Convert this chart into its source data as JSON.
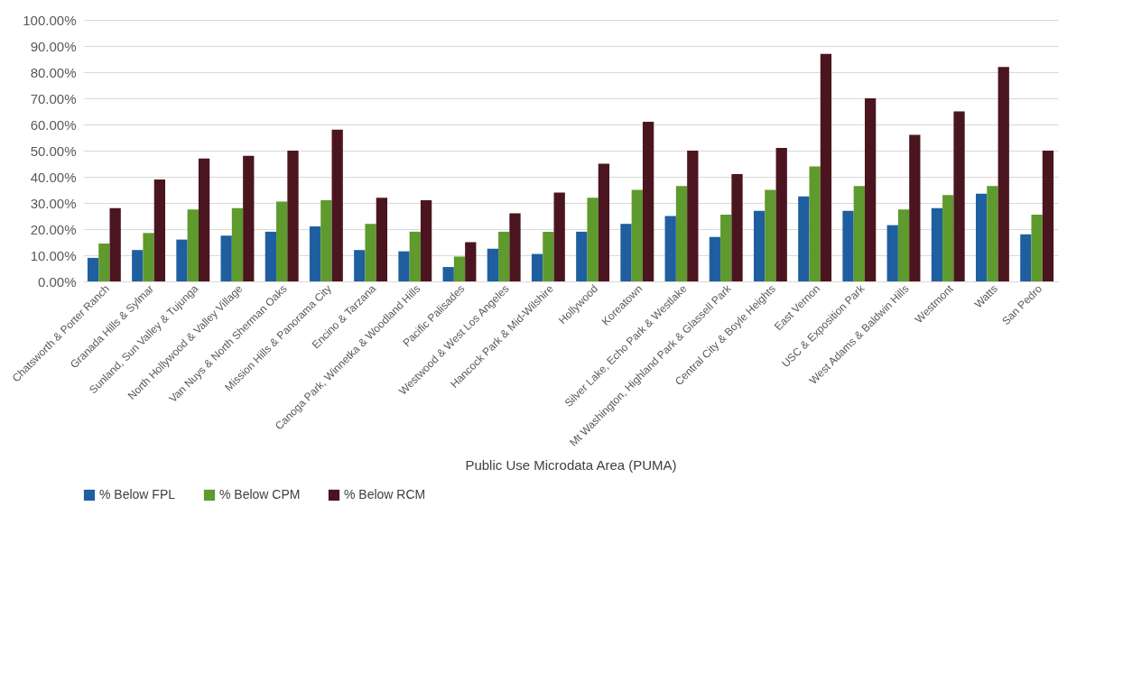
{
  "chart_data": {
    "type": "bar",
    "xlabel": "Public Use Microdata Area (PUMA)",
    "categories": [
      "Chatsworth & Porter Ranch",
      "Granada Hills & Sylmar",
      "Sunland, Sun Valley & Tujunga",
      "North Hollywood & Valley Village",
      "Van Nuys & North Sherman Oaks",
      "Mission Hills & Panorama City",
      "Encino & Tarzana",
      "Canoga Park, Winnetka & Woodland Hills",
      "Pacific Palisades",
      "Westwood & West Los Angeles",
      "Hancock Park & Mid-Wilshire",
      "Hollywood",
      "Koreatown",
      "Silver Lake, Echo Park & Westlake",
      "Mt Washington, Highland Park & Glassell Park",
      "Central City & Boyle Heights",
      "East Vernon",
      "USC & Exposition Park",
      "West Adams & Baldwin Hills",
      "Westmont",
      "Watts",
      "San Pedro"
    ],
    "series": [
      {
        "name": "% Below FPL",
        "color": "#1f5fa0",
        "values": [
          9,
          12,
          16,
          17.5,
          19,
          21,
          12,
          11.5,
          5.5,
          12.5,
          10.5,
          19,
          22,
          25,
          17,
          27,
          32.5,
          27,
          21.5,
          28,
          33.5,
          18
        ]
      },
      {
        "name": "% Below CPM",
        "color": "#5e9a2e",
        "values": [
          14.5,
          18.5,
          27.5,
          28,
          30.5,
          31,
          22,
          19,
          9.5,
          19,
          19,
          32,
          35,
          36.5,
          25.5,
          35,
          44,
          36.5,
          27.5,
          33,
          36.5,
          25.5
        ]
      },
      {
        "name": "% Below RCM",
        "color": "#4b1520",
        "values": [
          28,
          39,
          47,
          48,
          50,
          58,
          32,
          31,
          15,
          26,
          34,
          45,
          61,
          50,
          41,
          51,
          87,
          70,
          56,
          65,
          82,
          50
        ]
      }
    ],
    "ylim": [
      0,
      100
    ],
    "yticks": [
      {
        "value": 0,
        "label": "0.00%"
      },
      {
        "value": 10,
        "label": "10.00%"
      },
      {
        "value": 20,
        "label": "20.00%"
      },
      {
        "value": 30,
        "label": "30.00%"
      },
      {
        "value": 40,
        "label": "40.00%"
      },
      {
        "value": 50,
        "label": "50.00%"
      },
      {
        "value": 60,
        "label": "60.00%"
      },
      {
        "value": 70,
        "label": "70.00%"
      },
      {
        "value": 80,
        "label": "80.00%"
      },
      {
        "value": 90,
        "label": "90.00%"
      },
      {
        "value": 100,
        "label": "100.00%"
      }
    ],
    "grid": "y",
    "legend": "bottom"
  }
}
